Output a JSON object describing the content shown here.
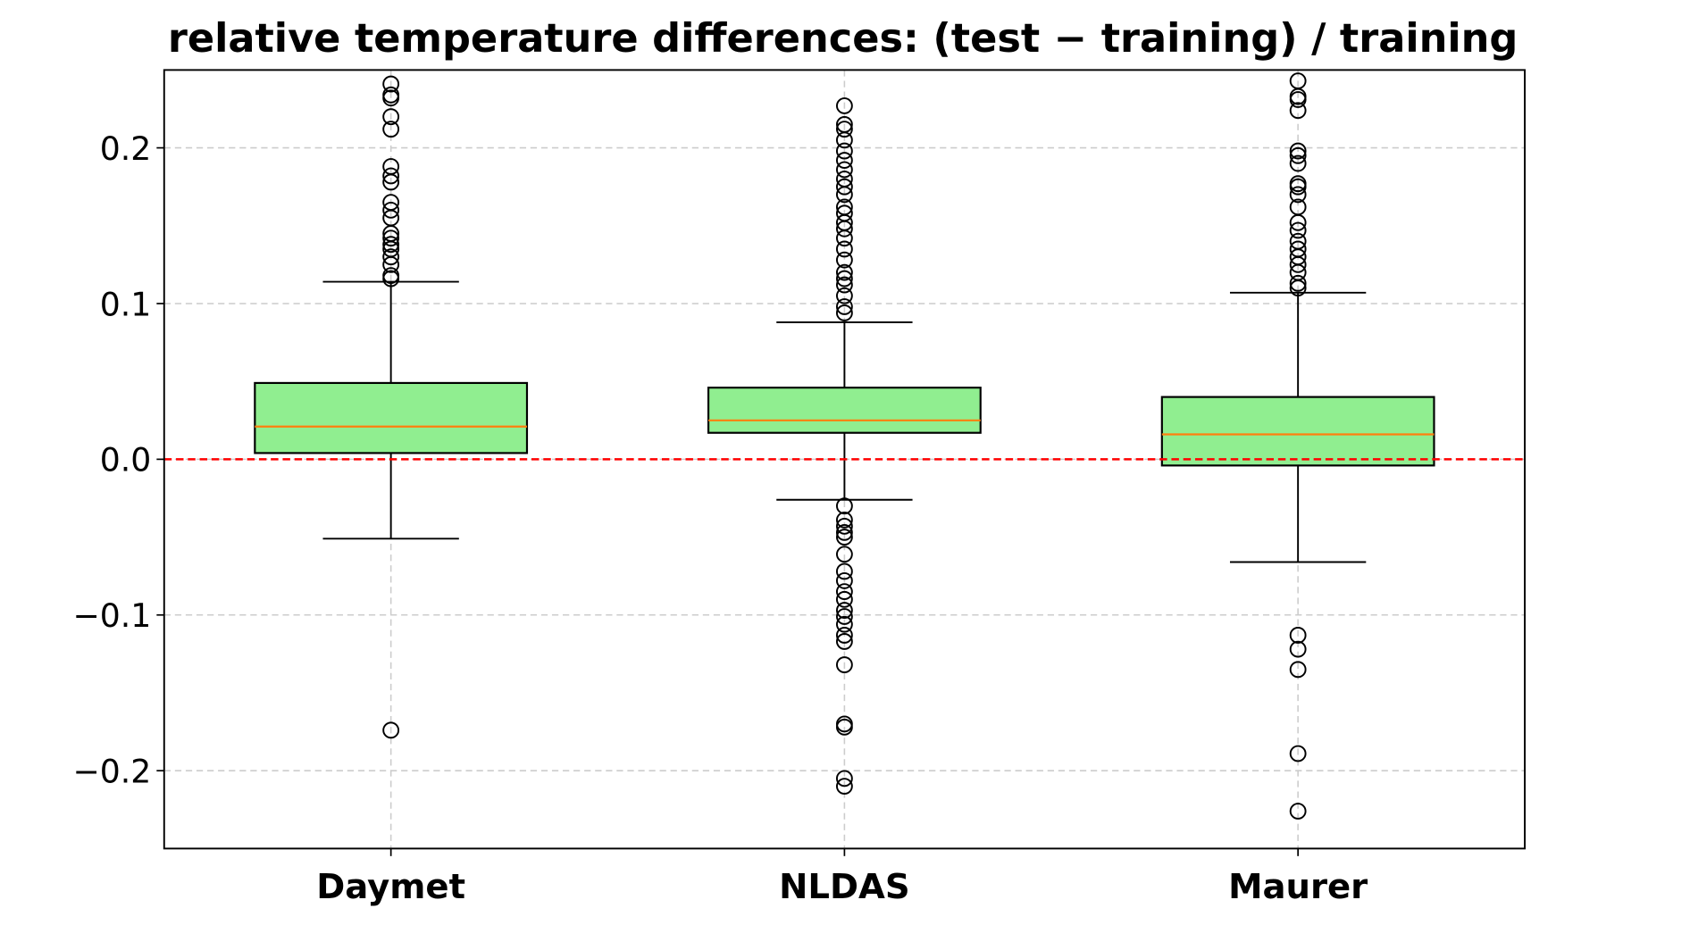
{
  "chart_data": {
    "type": "box",
    "title": "relative temperature differences: (test − training) / training",
    "xlabel": "",
    "ylabel": "",
    "categories": [
      "Daymet",
      "NLDAS",
      "Maurer"
    ],
    "ylim": [
      -0.25,
      0.25
    ],
    "yticks": [
      -0.2,
      -0.1,
      0.0,
      0.1,
      0.2
    ],
    "ytick_labels": [
      "−0.2",
      "−0.1",
      "0.0",
      "0.1",
      "0.2"
    ],
    "grid": true,
    "reference_line": {
      "y": 0.0,
      "color": "#ff0000",
      "style": "dashed"
    },
    "colors": {
      "box_fill": "#90ee90",
      "median": "#ff7f0e",
      "grid": "#cccccc"
    },
    "boxes": [
      {
        "name": "Daymet",
        "whisker_low": -0.051,
        "q1": 0.004,
        "median": 0.021,
        "q3": 0.049,
        "whisker_high": 0.114,
        "outliers": [
          0.241,
          0.234,
          0.232,
          0.22,
          0.212,
          0.188,
          0.182,
          0.178,
          0.165,
          0.16,
          0.155,
          0.145,
          0.142,
          0.138,
          0.135,
          0.13,
          0.125,
          0.118,
          0.116,
          -0.174
        ]
      },
      {
        "name": "NLDAS",
        "whisker_low": -0.026,
        "q1": 0.017,
        "median": 0.025,
        "q3": 0.046,
        "whisker_high": 0.088,
        "outliers": [
          0.227,
          0.215,
          0.212,
          0.205,
          0.198,
          0.192,
          0.186,
          0.18,
          0.175,
          0.17,
          0.162,
          0.158,
          0.152,
          0.148,
          0.142,
          0.135,
          0.128,
          0.12,
          0.116,
          0.112,
          0.105,
          0.098,
          0.094,
          -0.03,
          -0.039,
          -0.043,
          -0.047,
          -0.05,
          -0.061,
          -0.072,
          -0.078,
          -0.085,
          -0.09,
          -0.097,
          -0.101,
          -0.106,
          -0.113,
          -0.117,
          -0.132,
          -0.17,
          -0.172,
          -0.205,
          -0.21
        ]
      },
      {
        "name": "Maurer",
        "whisker_low": -0.066,
        "q1": -0.004,
        "median": 0.016,
        "q3": 0.04,
        "whisker_high": 0.107,
        "outliers": [
          0.243,
          0.233,
          0.231,
          0.224,
          0.198,
          0.195,
          0.19,
          0.177,
          0.175,
          0.17,
          0.162,
          0.152,
          0.147,
          0.14,
          0.135,
          0.13,
          0.125,
          0.12,
          0.113,
          0.11,
          -0.113,
          -0.122,
          -0.135,
          -0.189,
          -0.226
        ]
      }
    ]
  }
}
